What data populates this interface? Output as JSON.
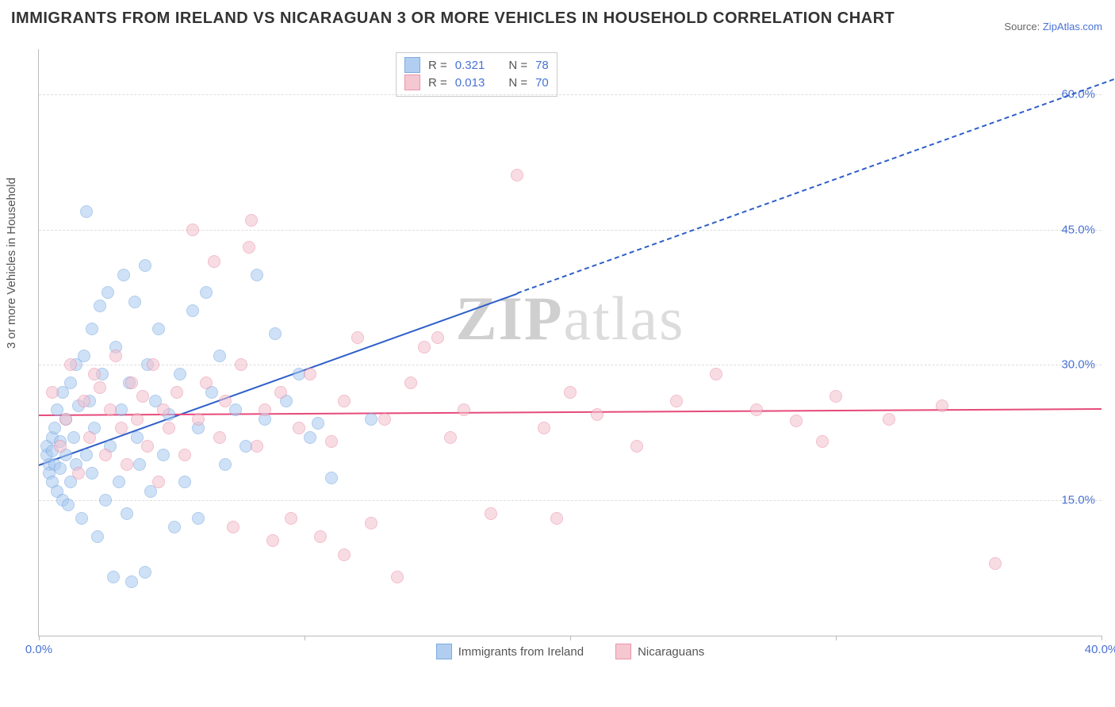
{
  "title": "IMMIGRANTS FROM IRELAND VS NICARAGUAN 3 OR MORE VEHICLES IN HOUSEHOLD CORRELATION CHART",
  "source_label": "Source:",
  "source_name": "ZipAtlas.com",
  "y_axis_label": "3 or more Vehicles in Household",
  "watermark_a": "ZIP",
  "watermark_b": "atlas",
  "chart": {
    "type": "scatter-with-regression",
    "xlim": [
      0,
      40
    ],
    "ylim": [
      0,
      65
    ],
    "x_ticks": [
      0,
      10,
      20,
      30,
      40
    ],
    "x_tick_labels": [
      "0.0%",
      "",
      "",
      "",
      "40.0%"
    ],
    "y_ticks": [
      15,
      30,
      45,
      60
    ],
    "y_tick_labels": [
      "15.0%",
      "30.0%",
      "45.0%",
      "60.0%"
    ],
    "background_color": "#ffffff",
    "grid_color": "#dddddd",
    "axis_color": "#bbbbbb",
    "marker_radius": 7,
    "marker_stroke_width": 1.2,
    "series": [
      {
        "name": "Immigrants from Ireland",
        "fill_color": "#a9c9ef",
        "stroke_color": "#6fa3df",
        "fill_opacity": 0.55,
        "R": "0.321",
        "N": "78",
        "regression": {
          "x1": 0,
          "y1": 19,
          "x2": 18,
          "y2": 38,
          "color": "#2e5fc9",
          "solid_until_x": 18,
          "extend_to_x": 43,
          "dash": "6,5"
        },
        "points": [
          [
            0.3,
            20
          ],
          [
            0.3,
            21
          ],
          [
            0.4,
            19
          ],
          [
            0.4,
            18
          ],
          [
            0.5,
            20.5
          ],
          [
            0.5,
            17
          ],
          [
            0.5,
            22
          ],
          [
            0.6,
            19
          ],
          [
            0.6,
            23
          ],
          [
            0.7,
            25
          ],
          [
            0.7,
            16
          ],
          [
            0.8,
            18.5
          ],
          [
            0.8,
            21.5
          ],
          [
            0.9,
            27
          ],
          [
            0.9,
            15
          ],
          [
            1.0,
            20
          ],
          [
            1.0,
            24
          ],
          [
            1.1,
            14.5
          ],
          [
            1.2,
            28
          ],
          [
            1.2,
            17
          ],
          [
            1.3,
            22
          ],
          [
            1.4,
            30
          ],
          [
            1.4,
            19
          ],
          [
            1.5,
            25.5
          ],
          [
            1.6,
            13
          ],
          [
            1.7,
            31
          ],
          [
            1.8,
            20
          ],
          [
            1.8,
            47
          ],
          [
            1.9,
            26
          ],
          [
            2.0,
            34
          ],
          [
            2.0,
            18
          ],
          [
            2.1,
            23
          ],
          [
            2.2,
            11
          ],
          [
            2.3,
            36.5
          ],
          [
            2.4,
            29
          ],
          [
            2.5,
            15
          ],
          [
            2.6,
            38
          ],
          [
            2.7,
            21
          ],
          [
            2.8,
            6.5
          ],
          [
            2.9,
            32
          ],
          [
            3.0,
            17
          ],
          [
            3.1,
            25
          ],
          [
            3.2,
            40
          ],
          [
            3.3,
            13.5
          ],
          [
            3.4,
            28
          ],
          [
            3.5,
            6
          ],
          [
            3.6,
            37
          ],
          [
            3.7,
            22
          ],
          [
            3.8,
            19
          ],
          [
            4.0,
            41
          ],
          [
            4.1,
            30
          ],
          [
            4.2,
            16
          ],
          [
            4.4,
            26
          ],
          [
            4.5,
            34
          ],
          [
            4.7,
            20
          ],
          [
            4.9,
            24.5
          ],
          [
            5.1,
            12
          ],
          [
            5.3,
            29
          ],
          [
            5.5,
            17
          ],
          [
            5.8,
            36
          ],
          [
            6.0,
            23
          ],
          [
            6.3,
            38
          ],
          [
            6.5,
            27
          ],
          [
            6.8,
            31
          ],
          [
            7.0,
            19
          ],
          [
            7.4,
            25
          ],
          [
            7.8,
            21
          ],
          [
            8.2,
            40
          ],
          [
            8.5,
            24
          ],
          [
            8.9,
            33.5
          ],
          [
            9.3,
            26
          ],
          [
            9.8,
            29
          ],
          [
            10.2,
            22
          ],
          [
            10.5,
            23.5
          ],
          [
            12.5,
            24
          ],
          [
            11.0,
            17.5
          ],
          [
            4.0,
            7
          ],
          [
            6.0,
            13
          ]
        ]
      },
      {
        "name": "Nicaraguans",
        "fill_color": "#f4c1cd",
        "stroke_color": "#e88aa3",
        "fill_opacity": 0.55,
        "R": "0.013",
        "N": "70",
        "regression": {
          "x1": 0,
          "y1": 24.5,
          "x2": 40,
          "y2": 25.2,
          "color": "#e64a7a",
          "solid_until_x": 40,
          "extend_to_x": 40,
          "dash": ""
        },
        "points": [
          [
            0.5,
            27
          ],
          [
            0.8,
            21
          ],
          [
            1.0,
            24
          ],
          [
            1.2,
            30
          ],
          [
            1.5,
            18
          ],
          [
            1.7,
            26
          ],
          [
            1.9,
            22
          ],
          [
            2.1,
            29
          ],
          [
            2.3,
            27.5
          ],
          [
            2.5,
            20
          ],
          [
            2.7,
            25
          ],
          [
            2.9,
            31
          ],
          [
            3.1,
            23
          ],
          [
            3.3,
            19
          ],
          [
            3.5,
            28
          ],
          [
            3.7,
            24
          ],
          [
            3.9,
            26.5
          ],
          [
            4.1,
            21
          ],
          [
            4.3,
            30
          ],
          [
            4.5,
            17
          ],
          [
            4.7,
            25
          ],
          [
            4.9,
            23
          ],
          [
            5.2,
            27
          ],
          [
            5.5,
            20
          ],
          [
            5.8,
            45
          ],
          [
            6.0,
            24
          ],
          [
            6.3,
            28
          ],
          [
            6.6,
            41.5
          ],
          [
            6.8,
            22
          ],
          [
            7.0,
            26
          ],
          [
            7.3,
            12
          ],
          [
            7.6,
            30
          ],
          [
            7.9,
            43
          ],
          [
            8.2,
            21
          ],
          [
            8.5,
            25
          ],
          [
            8.8,
            10.5
          ],
          [
            9.1,
            27
          ],
          [
            9.5,
            13
          ],
          [
            9.8,
            23
          ],
          [
            10.2,
            29
          ],
          [
            10.6,
            11
          ],
          [
            11.0,
            21.5
          ],
          [
            11.5,
            26
          ],
          [
            12.0,
            33
          ],
          [
            12.5,
            12.5
          ],
          [
            13.0,
            24
          ],
          [
            13.5,
            6.5
          ],
          [
            14.0,
            28
          ],
          [
            14.5,
            32
          ],
          [
            15.0,
            33
          ],
          [
            15.5,
            22
          ],
          [
            16.0,
            25
          ],
          [
            17.0,
            13.5
          ],
          [
            18.0,
            51
          ],
          [
            19.0,
            23
          ],
          [
            20.0,
            27
          ],
          [
            21.0,
            24.5
          ],
          [
            22.5,
            21
          ],
          [
            24.0,
            26
          ],
          [
            25.5,
            29
          ],
          [
            27.0,
            25
          ],
          [
            28.5,
            23.8
          ],
          [
            30.0,
            26.5
          ],
          [
            32.0,
            24
          ],
          [
            34.0,
            25.5
          ],
          [
            36.0,
            8
          ],
          [
            29.5,
            21.5
          ],
          [
            19.5,
            13
          ],
          [
            11.5,
            9
          ],
          [
            8.0,
            46
          ]
        ]
      }
    ]
  },
  "legend_top": {
    "r_label": "R =",
    "n_label": "N ="
  },
  "legend_bottom": [
    "Immigrants from Ireland",
    "Nicaraguans"
  ]
}
